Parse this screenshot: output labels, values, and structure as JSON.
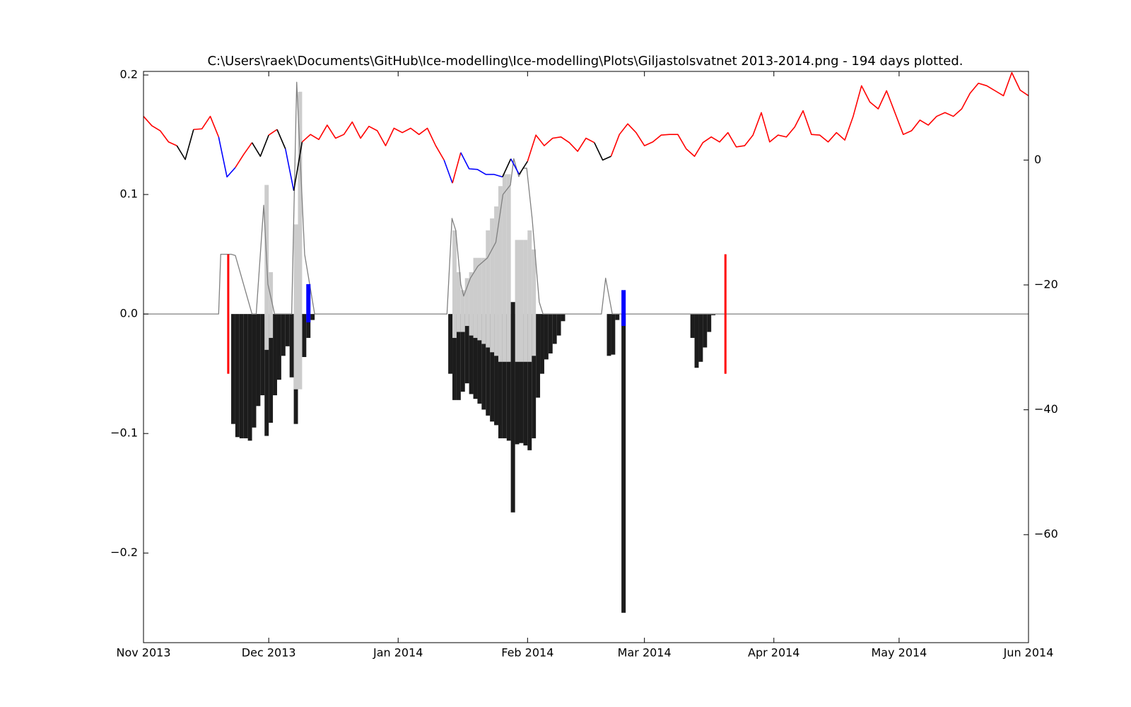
{
  "chart_data": {
    "type": "combo",
    "title": "C:\\Users\\raek\\Documents\\GitHub\\Ice-modelling\\Ice-modelling\\Plots\\Giljastolsvatnet 2013-2014.png - 194 days plotted.",
    "xlim": [
      0,
      212
    ],
    "xticks": [
      {
        "value": 0,
        "label": "Nov 2013"
      },
      {
        "value": 30,
        "label": "Dec 2013"
      },
      {
        "value": 61,
        "label": "Jan 2014"
      },
      {
        "value": 92,
        "label": "Feb 2014"
      },
      {
        "value": 120,
        "label": "Mar 2014"
      },
      {
        "value": 151,
        "label": "Apr 2014"
      },
      {
        "value": 181,
        "label": "May 2014"
      },
      {
        "value": 212,
        "label": "Jun 2014"
      }
    ],
    "ylim": [
      -0.275,
      0.203
    ],
    "yticks": [
      {
        "value": -0.2,
        "label": "−0.2"
      },
      {
        "value": -0.1,
        "label": "−0.1"
      },
      {
        "value": 0,
        "label": "0.0"
      },
      0.1,
      0.2
    ],
    "y2lim": [
      -77.3,
      14.2
    ],
    "y2ticks": [
      {
        "value": -60,
        "label": "−60"
      },
      {
        "value": -40,
        "label": "−40"
      },
      {
        "value": -20,
        "label": "−20"
      },
      0
    ],
    "series": [
      {
        "type": "bar",
        "color": "#1c1c1c",
        "x": [
          21,
          22,
          23,
          24,
          25,
          26,
          27,
          28,
          29,
          30,
          31,
          32,
          33,
          34,
          35,
          36,
          37,
          38,
          39,
          40,
          73,
          74,
          75,
          76,
          77,
          78,
          79,
          80,
          81,
          82,
          83,
          84,
          85,
          86,
          87,
          89,
          90,
          91,
          92,
          93,
          94,
          95,
          96,
          97,
          98,
          99,
          100,
          111,
          112,
          113,
          131,
          132,
          133,
          134,
          135,
          136
        ],
        "values": [
          -0.092,
          -0.103,
          -0.104,
          -0.104,
          -0.106,
          -0.095,
          -0.077,
          -0.068,
          -0.102,
          -0.091,
          -0.068,
          -0.055,
          -0.035,
          -0.027,
          -0.053,
          -0.092,
          -0.003,
          -0.036,
          -0.02,
          -0.005,
          -0.05,
          -0.072,
          -0.072,
          -0.065,
          -0.058,
          -0.067,
          -0.071,
          -0.075,
          -0.08,
          -0.085,
          -0.09,
          -0.093,
          -0.104,
          -0.104,
          -0.106,
          -0.109,
          -0.108,
          -0.11,
          -0.114,
          -0.104,
          -0.07,
          -0.05,
          -0.038,
          -0.033,
          -0.025,
          -0.018,
          -0.006,
          -0.035,
          -0.034,
          -0.005,
          -0.02,
          -0.045,
          -0.04,
          -0.028,
          -0.015,
          -0.001
        ]
      },
      {
        "type": "range",
        "color": "#cccccc",
        "x": [
          29,
          30,
          36,
          37,
          74,
          75,
          76,
          77,
          78,
          79,
          80,
          81,
          82,
          83,
          84,
          85,
          86,
          87,
          89,
          90,
          91,
          92,
          93
        ],
        "low": [
          -0.03,
          -0.02,
          -0.063,
          -0.063,
          -0.02,
          -0.015,
          -0.015,
          -0.01,
          -0.018,
          -0.02,
          -0.022,
          -0.025,
          -0.028,
          -0.032,
          -0.035,
          -0.04,
          -0.04,
          -0.04,
          -0.04,
          -0.04,
          -0.04,
          -0.04,
          -0.035
        ],
        "high": [
          0.108,
          0.035,
          0.075,
          0.186,
          0.07,
          0.035,
          0.02,
          0.03,
          0.035,
          0.047,
          0.047,
          0.047,
          0.07,
          0.08,
          0.09,
          0.107,
          0.117,
          0.117,
          0.062,
          0.062,
          0.062,
          0.07,
          0.054
        ]
      },
      {
        "type": "line",
        "color": "#808080",
        "x": [
          0,
          18,
          18.5,
          21,
          22,
          26,
          27,
          28.8,
          29.8,
          31.4,
          35.5,
          36.7,
          38.6,
          41,
          72.7,
          73.9,
          74.8,
          76,
          76.7,
          78.3,
          80.1,
          82.4,
          84.4,
          86.1,
          87.9,
          88.7,
          89.9,
          90.9,
          91.8,
          93.1,
          94.8,
          95.7,
          109.7,
          110.7,
          112.3,
          212
        ],
        "values": [
          0,
          0,
          0.05,
          0.05,
          0.049,
          0,
          0,
          0.091,
          0.025,
          0,
          0,
          0.194,
          0.05,
          0,
          0,
          0.08,
          0.07,
          0.025,
          0.015,
          0.03,
          0.04,
          0.047,
          0.06,
          0.1,
          0.108,
          0.13,
          0.115,
          0.122,
          0.122,
          0.08,
          0.01,
          0,
          0,
          0.03,
          0,
          0
        ]
      },
      {
        "type": "range",
        "colors": [
          "red",
          "blue",
          "#1c1c1c",
          "#1c1c1c",
          "blue",
          "red"
        ],
        "x": [
          20.3,
          39.5,
          88.5,
          115,
          115,
          139.4
        ],
        "low": [
          -0.05,
          -0.007,
          -0.166,
          -0.25,
          -0.01,
          -0.05
        ],
        "high": [
          0.05,
          0.025,
          0.01,
          0,
          0.02,
          0.05
        ]
      },
      {
        "type": "line",
        "axis": "y2",
        "x": [
          0,
          2,
          4,
          6,
          8,
          10,
          12,
          14,
          16,
          18,
          20,
          22,
          24,
          26,
          28,
          30,
          32,
          34,
          36,
          38,
          40,
          42,
          44,
          46,
          48,
          50,
          52,
          54,
          56,
          58,
          60,
          62,
          64,
          66,
          68,
          70,
          72,
          74,
          76,
          78,
          80,
          82,
          84,
          86,
          88,
          90,
          92,
          94,
          96,
          98,
          100,
          102,
          104,
          106,
          108,
          110,
          112,
          114,
          116,
          118,
          120,
          122,
          124,
          126,
          128,
          130,
          132,
          134,
          136,
          138,
          140,
          142,
          144,
          146,
          148,
          150,
          152,
          154,
          156,
          158,
          160,
          162,
          164,
          166,
          168,
          170,
          172,
          174,
          176,
          178,
          180,
          182,
          184,
          186,
          188,
          190,
          192,
          194,
          196,
          198,
          200,
          202,
          204,
          206,
          208,
          210,
          212
        ],
        "values": [
          7.0,
          5.5,
          4.7,
          2.9,
          2.3,
          0.1,
          4.9,
          5.0,
          7.0,
          3.7,
          -2.7,
          -1.2,
          0.9,
          2.8,
          0.6,
          4.0,
          4.9,
          1.8,
          -4.9,
          2.9,
          4.1,
          3.3,
          5.6,
          3.5,
          4.1,
          6.1,
          3.5,
          5.4,
          4.7,
          2.3,
          5.1,
          4.4,
          5.1,
          4.1,
          5.1,
          2.3,
          0.0,
          -3.7,
          1.2,
          -1.4,
          -1.5,
          -2.3,
          -2.3,
          -2.7,
          0.2,
          -2.3,
          -0.2,
          4.0,
          2.3,
          3.5,
          3.7,
          2.8,
          1.4,
          3.5,
          2.8,
          0.0,
          0.6,
          4.1,
          5.8,
          4.4,
          2.3,
          2.9,
          4.0,
          4.1,
          4.1,
          1.8,
          0.6,
          2.8,
          3.7,
          2.9,
          4.4,
          2.1,
          2.3,
          4.0,
          7.6,
          2.9,
          4.0,
          3.7,
          5.3,
          7.9,
          4.1,
          4.0,
          2.9,
          4.4,
          3.2,
          7.0,
          11.9,
          9.3,
          8.2,
          11.1,
          7.6,
          4.1,
          4.7,
          6.4,
          5.6,
          7.0,
          7.6,
          7.0,
          8.2,
          10.7,
          12.3,
          11.9,
          11.1,
          10.3,
          14.0,
          11.2,
          10.3
        ],
        "colors": [
          "red",
          "red",
          "red",
          "red",
          "red",
          "black",
          "black",
          "red",
          "red",
          "red",
          "blue",
          "blue",
          "red",
          "red",
          "black",
          "black",
          "red",
          "black",
          "blue",
          "black",
          "red",
          "red",
          "red",
          "red",
          "red",
          "red",
          "red",
          "red",
          "red",
          "red",
          "red",
          "red",
          "red",
          "red",
          "red",
          "red",
          "red",
          "blue",
          "red",
          "blue",
          "blue",
          "blue",
          "blue",
          "blue",
          "black",
          "blue",
          "black",
          "red",
          "red",
          "red",
          "red",
          "red",
          "red",
          "red",
          "red",
          "black",
          "black",
          "red",
          "red",
          "red",
          "red",
          "red",
          "red",
          "red",
          "red",
          "red",
          "red",
          "red",
          "red",
          "red",
          "red",
          "red",
          "red",
          "red",
          "red",
          "red",
          "red",
          "red",
          "red",
          "red",
          "red",
          "red",
          "red",
          "red",
          "red",
          "red",
          "red",
          "red",
          "red",
          "red",
          "red",
          "red",
          "red",
          "red",
          "red",
          "red",
          "red",
          "red",
          "red",
          "red",
          "red",
          "red",
          "red",
          "red",
          "red",
          "red",
          "red"
        ]
      }
    ]
  }
}
